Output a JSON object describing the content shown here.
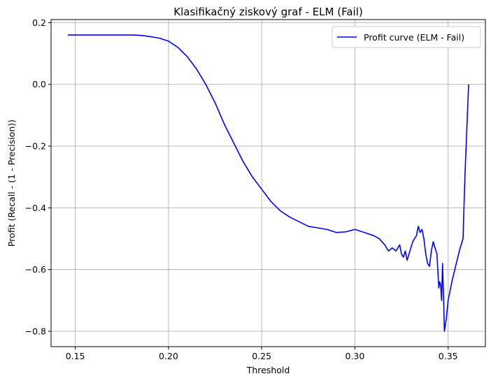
{
  "chart_data": {
    "type": "line",
    "title": "Klasifikačný ziskový graf - ELM (Fail)",
    "xlabel": "Threshold",
    "ylabel": "Profit (Recall - (1 - Precision))",
    "xlim": [
      0.137,
      0.37
    ],
    "ylim": [
      -0.85,
      0.21
    ],
    "xticks": [
      {
        "value": 0.15,
        "label": "0.15"
      },
      {
        "value": 0.2,
        "label": "0.20"
      },
      {
        "value": 0.25,
        "label": "0.25"
      },
      {
        "value": 0.3,
        "label": "0.30"
      },
      {
        "value": 0.35,
        "label": "0.35"
      }
    ],
    "yticks": [
      {
        "value": 0.2,
        "label": "0.2"
      },
      {
        "value": 0.0,
        "label": "0.0"
      },
      {
        "value": -0.2,
        "label": "−0.2"
      },
      {
        "value": -0.4,
        "label": "−0.4"
      },
      {
        "value": -0.6,
        "label": "−0.6"
      },
      {
        "value": -0.8,
        "label": "−0.8"
      }
    ],
    "grid": true,
    "legend_position": "top-right",
    "series": [
      {
        "name": "Profit curve (ELM - Fail)",
        "color": "#0000ff",
        "x": [
          0.146,
          0.16,
          0.17,
          0.18,
          0.185,
          0.19,
          0.195,
          0.2,
          0.205,
          0.21,
          0.215,
          0.22,
          0.225,
          0.23,
          0.235,
          0.24,
          0.245,
          0.25,
          0.255,
          0.26,
          0.265,
          0.27,
          0.275,
          0.28,
          0.285,
          0.29,
          0.295,
          0.3,
          0.305,
          0.31,
          0.313,
          0.316,
          0.318,
          0.32,
          0.322,
          0.324,
          0.325,
          0.326,
          0.327,
          0.328,
          0.329,
          0.33,
          0.331,
          0.332,
          0.333,
          0.334,
          0.335,
          0.336,
          0.337,
          0.338,
          0.339,
          0.34,
          0.341,
          0.342,
          0.343,
          0.344,
          0.345,
          0.3455,
          0.346,
          0.3465,
          0.347,
          0.3473,
          0.3476,
          0.348,
          0.349,
          0.35,
          0.352,
          0.354,
          0.356,
          0.358,
          0.359,
          0.361
        ],
        "y": [
          0.16,
          0.16,
          0.16,
          0.16,
          0.159,
          0.155,
          0.15,
          0.14,
          0.12,
          0.09,
          0.05,
          0.0,
          -0.06,
          -0.13,
          -0.19,
          -0.25,
          -0.3,
          -0.34,
          -0.38,
          -0.41,
          -0.43,
          -0.445,
          -0.46,
          -0.465,
          -0.47,
          -0.48,
          -0.478,
          -0.47,
          -0.48,
          -0.49,
          -0.5,
          -0.52,
          -0.54,
          -0.53,
          -0.54,
          -0.52,
          -0.55,
          -0.56,
          -0.54,
          -0.57,
          -0.55,
          -0.53,
          -0.51,
          -0.5,
          -0.49,
          -0.46,
          -0.48,
          -0.47,
          -0.5,
          -0.55,
          -0.58,
          -0.59,
          -0.54,
          -0.51,
          -0.53,
          -0.55,
          -0.66,
          -0.64,
          -0.65,
          -0.7,
          -0.58,
          -0.64,
          -0.7,
          -0.8,
          -0.76,
          -0.7,
          -0.64,
          -0.59,
          -0.54,
          -0.5,
          -0.3,
          0.0
        ]
      }
    ]
  }
}
